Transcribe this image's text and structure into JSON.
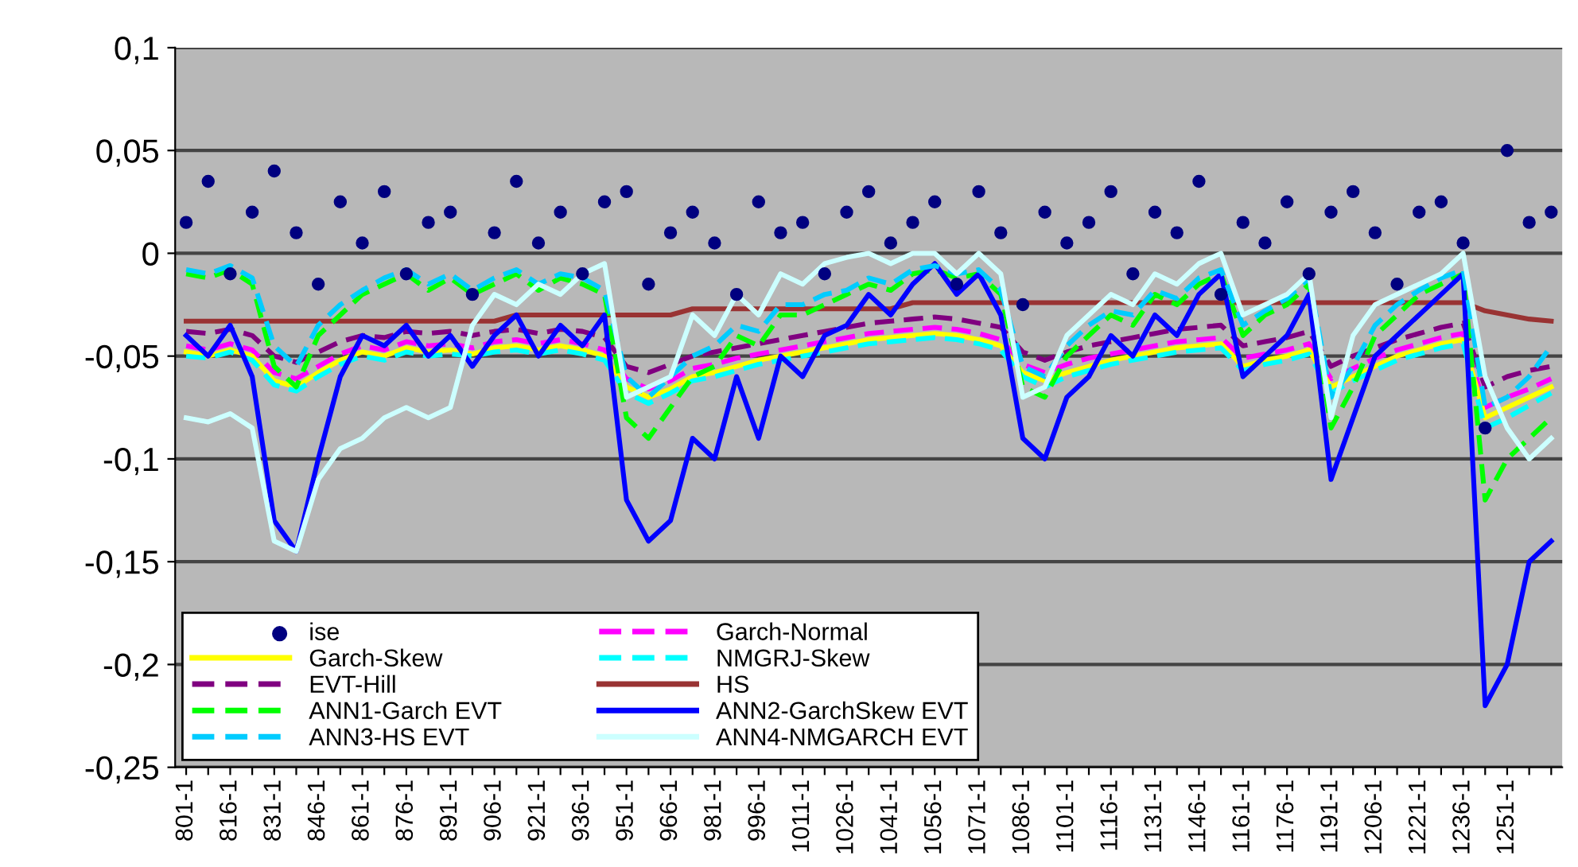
{
  "chart_data": {
    "type": "line",
    "categories": [
      "801-1",
      null,
      "816-1",
      null,
      "831-1",
      null,
      "846-1",
      null,
      "861-1",
      null,
      "876-1",
      null,
      "891-1",
      null,
      "906-1",
      null,
      "921-1",
      null,
      "936-1",
      null,
      "951-1",
      null,
      "966-1",
      null,
      "981-1",
      null,
      "996-1",
      null,
      "1011-1",
      null,
      "1026-1",
      null,
      "1041-1",
      null,
      "1056-1",
      null,
      "1071-1",
      null,
      "1086-1",
      null,
      "1101-1",
      null,
      "1116-1",
      null,
      "1131-1",
      null,
      "1146-1",
      null,
      "1161-1",
      null,
      "1176-1",
      null,
      "1191-1",
      null,
      "1206-1",
      null,
      "1221-1",
      null,
      "1236-1",
      null,
      "1251-1",
      null,
      null
    ],
    "ylim": [
      -0.25,
      0.1
    ],
    "yticks": [
      {
        "value": -0.25,
        "label": "-0,25"
      },
      {
        "value": -0.2,
        "label": "-0,2"
      },
      {
        "value": -0.15,
        "label": "-0,15"
      },
      {
        "value": -0.1,
        "label": "-0,1"
      },
      {
        "value": -0.05,
        "label": "-0,05"
      },
      {
        "value": 0,
        "label": "0"
      },
      {
        "value": 0.05,
        "label": "0,05"
      },
      {
        "value": 0.1,
        "label": "0,1"
      }
    ],
    "grid": "y",
    "legend": "bottom left",
    "series": [
      {
        "name": "ise",
        "type": "scatter",
        "marker": "circle",
        "color": "#000080",
        "values": [
          0.015,
          0.035,
          -0.01,
          0.02,
          0.04,
          0.01,
          -0.015,
          0.025,
          0.005,
          0.03,
          -0.01,
          0.015,
          0.02,
          -0.02,
          0.01,
          0.035,
          0.005,
          0.02,
          -0.01,
          0.025,
          0.03,
          -0.015,
          0.01,
          0.02,
          0.005,
          -0.02,
          0.025,
          0.01,
          0.015,
          -0.01,
          0.02,
          0.03,
          0.005,
          0.015,
          0.025,
          -0.015,
          0.03,
          0.01,
          -0.025,
          0.02,
          0.005,
          0.015,
          0.03,
          -0.01,
          0.02,
          0.01,
          0.035,
          -0.02,
          0.015,
          0.005,
          0.025,
          -0.01,
          0.02,
          0.03,
          0.01,
          -0.015,
          0.02,
          0.025,
          0.005,
          -0.085,
          0.05,
          0.015,
          0.02
        ]
      },
      {
        "name": "Garch-Normal",
        "color": "#ff00ff",
        "line_style": "dashed",
        "values": [
          -0.045,
          -0.047,
          -0.044,
          -0.047,
          -0.058,
          -0.061,
          -0.055,
          -0.049,
          -0.045,
          -0.047,
          -0.043,
          -0.045,
          -0.044,
          -0.046,
          -0.043,
          -0.042,
          -0.044,
          -0.042,
          -0.044,
          -0.047,
          -0.061,
          -0.066,
          -0.062,
          -0.056,
          -0.054,
          -0.051,
          -0.049,
          -0.047,
          -0.045,
          -0.043,
          -0.041,
          -0.039,
          -0.038,
          -0.037,
          -0.036,
          -0.037,
          -0.039,
          -0.042,
          -0.054,
          -0.058,
          -0.054,
          -0.051,
          -0.049,
          -0.047,
          -0.045,
          -0.043,
          -0.042,
          -0.041,
          -0.051,
          -0.049,
          -0.047,
          -0.044,
          -0.061,
          -0.056,
          -0.051,
          -0.047,
          -0.044,
          -0.041,
          -0.039,
          -0.075,
          -0.07,
          -0.066,
          -0.061
        ]
      },
      {
        "name": "Garch-Skew",
        "color": "#ffff00",
        "line_style": "solid",
        "values": [
          -0.048,
          -0.05,
          -0.047,
          -0.05,
          -0.062,
          -0.065,
          -0.058,
          -0.052,
          -0.048,
          -0.05,
          -0.046,
          -0.048,
          -0.047,
          -0.049,
          -0.046,
          -0.045,
          -0.047,
          -0.045,
          -0.047,
          -0.05,
          -0.065,
          -0.07,
          -0.066,
          -0.06,
          -0.058,
          -0.055,
          -0.052,
          -0.05,
          -0.048,
          -0.046,
          -0.044,
          -0.042,
          -0.041,
          -0.04,
          -0.039,
          -0.04,
          -0.042,
          -0.045,
          -0.058,
          -0.062,
          -0.058,
          -0.055,
          -0.052,
          -0.05,
          -0.048,
          -0.046,
          -0.045,
          -0.044,
          -0.055,
          -0.052,
          -0.05,
          -0.047,
          -0.065,
          -0.06,
          -0.055,
          -0.05,
          -0.047,
          -0.044,
          -0.042,
          -0.08,
          -0.075,
          -0.07,
          -0.065
        ]
      },
      {
        "name": "NMGRJ-Skew",
        "color": "#00ffff",
        "line_style": "dashed",
        "values": [
          -0.05,
          -0.051,
          -0.048,
          -0.052,
          -0.064,
          -0.067,
          -0.06,
          -0.054,
          -0.05,
          -0.052,
          -0.048,
          -0.05,
          -0.049,
          -0.05,
          -0.048,
          -0.047,
          -0.049,
          -0.047,
          -0.049,
          -0.052,
          -0.068,
          -0.073,
          -0.068,
          -0.062,
          -0.06,
          -0.057,
          -0.054,
          -0.052,
          -0.05,
          -0.048,
          -0.046,
          -0.044,
          -0.043,
          -0.042,
          -0.041,
          -0.042,
          -0.044,
          -0.047,
          -0.06,
          -0.065,
          -0.06,
          -0.057,
          -0.054,
          -0.052,
          -0.05,
          -0.048,
          -0.047,
          -0.046,
          -0.057,
          -0.054,
          -0.052,
          -0.049,
          -0.068,
          -0.062,
          -0.057,
          -0.052,
          -0.049,
          -0.046,
          -0.044,
          -0.085,
          -0.08,
          -0.074,
          -0.068
        ]
      },
      {
        "name": "EVT-Hill",
        "color": "#800080",
        "line_style": "dashed",
        "values": [
          -0.038,
          -0.039,
          -0.037,
          -0.04,
          -0.05,
          -0.053,
          -0.048,
          -0.043,
          -0.04,
          -0.041,
          -0.038,
          -0.039,
          -0.038,
          -0.04,
          -0.038,
          -0.037,
          -0.039,
          -0.037,
          -0.038,
          -0.041,
          -0.055,
          -0.058,
          -0.054,
          -0.05,
          -0.048,
          -0.046,
          -0.044,
          -0.042,
          -0.04,
          -0.038,
          -0.036,
          -0.034,
          -0.033,
          -0.032,
          -0.031,
          -0.032,
          -0.034,
          -0.036,
          -0.048,
          -0.052,
          -0.048,
          -0.045,
          -0.043,
          -0.041,
          -0.039,
          -0.037,
          -0.036,
          -0.035,
          -0.045,
          -0.043,
          -0.041,
          -0.038,
          -0.055,
          -0.05,
          -0.046,
          -0.042,
          -0.039,
          -0.036,
          -0.034,
          -0.065,
          -0.06,
          -0.057,
          -0.055
        ]
      },
      {
        "name": "HS",
        "color": "#993333",
        "line_style": "solid",
        "values": [
          -0.033,
          -0.033,
          -0.033,
          -0.033,
          -0.033,
          -0.033,
          -0.033,
          -0.033,
          -0.033,
          -0.033,
          -0.033,
          -0.033,
          -0.033,
          -0.033,
          -0.033,
          -0.03,
          -0.03,
          -0.03,
          -0.03,
          -0.03,
          -0.03,
          -0.03,
          -0.03,
          -0.027,
          -0.027,
          -0.027,
          -0.027,
          -0.027,
          -0.027,
          -0.027,
          -0.027,
          -0.027,
          -0.027,
          -0.024,
          -0.024,
          -0.024,
          -0.024,
          -0.024,
          -0.024,
          -0.024,
          -0.024,
          -0.024,
          -0.024,
          -0.024,
          -0.024,
          -0.024,
          -0.024,
          -0.024,
          -0.024,
          -0.024,
          -0.024,
          -0.024,
          -0.024,
          -0.024,
          -0.024,
          -0.024,
          -0.024,
          -0.024,
          -0.024,
          -0.028,
          -0.03,
          -0.032,
          -0.033
        ]
      },
      {
        "name": "ANN1-Garch EVT",
        "color": "#00ff00",
        "line_style": "dashed",
        "values": [
          -0.01,
          -0.012,
          -0.008,
          -0.015,
          -0.055,
          -0.065,
          -0.04,
          -0.03,
          -0.02,
          -0.015,
          -0.01,
          -0.018,
          -0.012,
          -0.02,
          -0.015,
          -0.01,
          -0.018,
          -0.012,
          -0.015,
          -0.02,
          -0.08,
          -0.09,
          -0.075,
          -0.06,
          -0.055,
          -0.04,
          -0.045,
          -0.03,
          -0.03,
          -0.025,
          -0.02,
          -0.015,
          -0.018,
          -0.01,
          -0.008,
          -0.012,
          -0.01,
          -0.02,
          -0.065,
          -0.07,
          -0.05,
          -0.04,
          -0.03,
          -0.035,
          -0.02,
          -0.025,
          -0.015,
          -0.01,
          -0.04,
          -0.03,
          -0.025,
          -0.015,
          -0.085,
          -0.065,
          -0.04,
          -0.03,
          -0.02,
          -0.015,
          -0.01,
          -0.12,
          -0.1,
          -0.09,
          -0.08
        ]
      },
      {
        "name": "ANN2-GarchSkew EVT",
        "color": "#0000ff",
        "line_style": "solid",
        "values": [
          -0.04,
          -0.05,
          -0.035,
          -0.06,
          -0.13,
          -0.145,
          -0.1,
          -0.06,
          -0.04,
          -0.045,
          -0.035,
          -0.05,
          -0.04,
          -0.055,
          -0.04,
          -0.03,
          -0.05,
          -0.035,
          -0.045,
          -0.03,
          -0.12,
          -0.14,
          -0.13,
          -0.09,
          -0.1,
          -0.06,
          -0.09,
          -0.05,
          -0.06,
          -0.04,
          -0.035,
          -0.02,
          -0.03,
          -0.015,
          -0.005,
          -0.02,
          -0.01,
          -0.03,
          -0.09,
          -0.1,
          -0.07,
          -0.06,
          -0.04,
          -0.05,
          -0.03,
          -0.04,
          -0.02,
          -0.01,
          -0.06,
          -0.05,
          -0.04,
          -0.02,
          -0.11,
          -0.08,
          -0.05,
          -0.04,
          -0.03,
          -0.02,
          -0.01,
          -0.22,
          -0.2,
          -0.15,
          -0.14
        ]
      },
      {
        "name": "ANN3-HS EVT",
        "color": "#00ccff",
        "line_style": "dashed",
        "values": [
          -0.008,
          -0.01,
          -0.006,
          -0.012,
          -0.045,
          -0.055,
          -0.035,
          -0.025,
          -0.018,
          -0.012,
          -0.008,
          -0.015,
          -0.01,
          -0.018,
          -0.012,
          -0.008,
          -0.015,
          -0.01,
          -0.012,
          -0.018,
          -0.06,
          -0.07,
          -0.06,
          -0.05,
          -0.045,
          -0.035,
          -0.038,
          -0.025,
          -0.025,
          -0.02,
          -0.018,
          -0.012,
          -0.015,
          -0.008,
          -0.006,
          -0.01,
          -0.008,
          -0.018,
          -0.055,
          -0.06,
          -0.045,
          -0.035,
          -0.028,
          -0.03,
          -0.018,
          -0.022,
          -0.012,
          -0.008,
          -0.035,
          -0.028,
          -0.022,
          -0.012,
          -0.07,
          -0.055,
          -0.035,
          -0.025,
          -0.018,
          -0.012,
          -0.008,
          -0.075,
          -0.07,
          -0.06,
          -0.045
        ]
      },
      {
        "name": "ANN4-NMGARCH EVT",
        "color": "#ccffff",
        "line_style": "solid",
        "values": [
          -0.08,
          -0.082,
          -0.078,
          -0.085,
          -0.14,
          -0.145,
          -0.11,
          -0.095,
          -0.09,
          -0.08,
          -0.075,
          -0.08,
          -0.075,
          -0.035,
          -0.02,
          -0.025,
          -0.015,
          -0.02,
          -0.01,
          -0.005,
          -0.07,
          -0.065,
          -0.06,
          -0.03,
          -0.04,
          -0.02,
          -0.03,
          -0.01,
          -0.015,
          -0.005,
          -0.002,
          0.0,
          -0.005,
          0.0,
          0.0,
          -0.01,
          0.0,
          -0.01,
          -0.07,
          -0.065,
          -0.04,
          -0.03,
          -0.02,
          -0.025,
          -0.01,
          -0.015,
          -0.005,
          0.0,
          -0.03,
          -0.025,
          -0.02,
          -0.01,
          -0.08,
          -0.04,
          -0.025,
          -0.02,
          -0.015,
          -0.01,
          0.0,
          -0.06,
          -0.085,
          -0.1,
          -0.09
        ]
      }
    ]
  }
}
